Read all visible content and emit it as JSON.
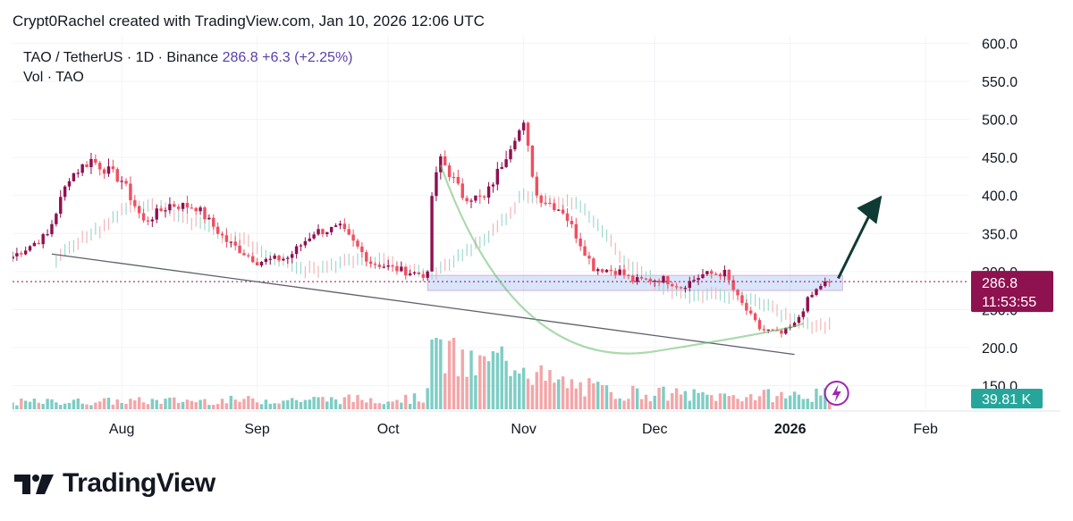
{
  "header": {
    "text": "Crypt0Rachel created with TradingView.com, Jan 10, 2026 12:06 UTC"
  },
  "legend": {
    "symbol": "TAO / TetherUS · 1D · Binance",
    "price": "286.8",
    "change": "+6.3 (+2.25%)",
    "volume_label": "Vol · TAO"
  },
  "price_tag": {
    "price": "286.8",
    "countdown": "11:53:55",
    "color": "#8e1150"
  },
  "volume_tag": {
    "value": "39.81 K",
    "color": "#26a69a"
  },
  "footer": {
    "brand": "TradingView"
  },
  "colors": {
    "up": "#8e1150",
    "down": "#ef4f5f",
    "vol_up": "#7ecdc4",
    "vol_down": "#f3a6a8"
  },
  "chart_data": {
    "type": "candlestick",
    "y_ticks": [
      "600.0",
      "550.0",
      "500.0",
      "450.0",
      "400.0",
      "350.0",
      "300.0",
      "250.0",
      "200.0",
      "150.0"
    ],
    "ylim": [
      140,
      610
    ],
    "x_ticks": [
      {
        "label": "Aug",
        "date": "2025-08-01"
      },
      {
        "label": "Sep",
        "date": "2025-09-01"
      },
      {
        "label": "Oct",
        "date": "2025-10-01"
      },
      {
        "label": "Nov",
        "date": "2025-11-01"
      },
      {
        "label": "Dec",
        "date": "2025-12-01"
      },
      {
        "label": "2026",
        "date": "2026-01-01"
      },
      {
        "label": "Feb",
        "date": "2026-02-01"
      }
    ],
    "x_range": [
      "2025-07-07",
      "2026-02-11"
    ],
    "last_date": "2026-01-10",
    "last_price": 286.8,
    "close_keypoints": [
      [
        "2025-07-07",
        320
      ],
      [
        "2025-07-15",
        348
      ],
      [
        "2025-07-20",
        425
      ],
      [
        "2025-07-25",
        447
      ],
      [
        "2025-08-01",
        420
      ],
      [
        "2025-08-06",
        365
      ],
      [
        "2025-08-12",
        388
      ],
      [
        "2025-08-18",
        385
      ],
      [
        "2025-08-25",
        340
      ],
      [
        "2025-09-01",
        313
      ],
      [
        "2025-09-08",
        318
      ],
      [
        "2025-09-14",
        352
      ],
      [
        "2025-09-20",
        357
      ],
      [
        "2025-09-27",
        312
      ],
      [
        "2025-10-05",
        300
      ],
      [
        "2025-10-10",
        295
      ],
      [
        "2025-10-11",
        400
      ],
      [
        "2025-10-13",
        450
      ],
      [
        "2025-10-18",
        400
      ],
      [
        "2025-10-23",
        395
      ],
      [
        "2025-10-26",
        430
      ],
      [
        "2025-10-30",
        480
      ],
      [
        "2025-11-01",
        490
      ],
      [
        "2025-11-04",
        400
      ],
      [
        "2025-11-10",
        380
      ],
      [
        "2025-11-17",
        305
      ],
      [
        "2025-11-23",
        300
      ],
      [
        "2025-11-26",
        288
      ],
      [
        "2025-12-03",
        290
      ],
      [
        "2025-12-07",
        280
      ],
      [
        "2025-12-12",
        296
      ],
      [
        "2025-12-17",
        298
      ],
      [
        "2025-12-20",
        265
      ],
      [
        "2025-12-25",
        225
      ],
      [
        "2025-12-30",
        218
      ],
      [
        "2026-01-02",
        230
      ],
      [
        "2026-01-05",
        262
      ],
      [
        "2026-01-08",
        282
      ],
      [
        "2026-01-10",
        286.8
      ]
    ],
    "volume_keypoints": [
      [
        "2025-07-07",
        6
      ],
      [
        "2025-10-09",
        9
      ],
      [
        "2025-10-10",
        30
      ],
      [
        "2025-10-11",
        55
      ],
      [
        "2025-10-20",
        34
      ],
      [
        "2025-10-31",
        45
      ],
      [
        "2025-11-06",
        24
      ],
      [
        "2025-11-20",
        15
      ],
      [
        "2025-12-15",
        11
      ],
      [
        "2026-01-10",
        12
      ]
    ],
    "support_zone": {
      "top": 295,
      "bottom": 275,
      "from": "2025-10-10",
      "to": "2026-01-13"
    },
    "trendline": {
      "from": [
        "2025-07-16",
        323
      ],
      "to": [
        "2026-01-02",
        191
      ]
    },
    "arc": {
      "from": [
        "2025-10-13",
        440
      ],
      "bottom": [
        "2025-12-01",
        195
      ],
      "to": [
        "2026-01-04",
        232
      ]
    },
    "arrow": {
      "from": [
        "2026-01-12",
        291
      ],
      "to": [
        "2026-01-22",
        400
      ]
    }
  }
}
